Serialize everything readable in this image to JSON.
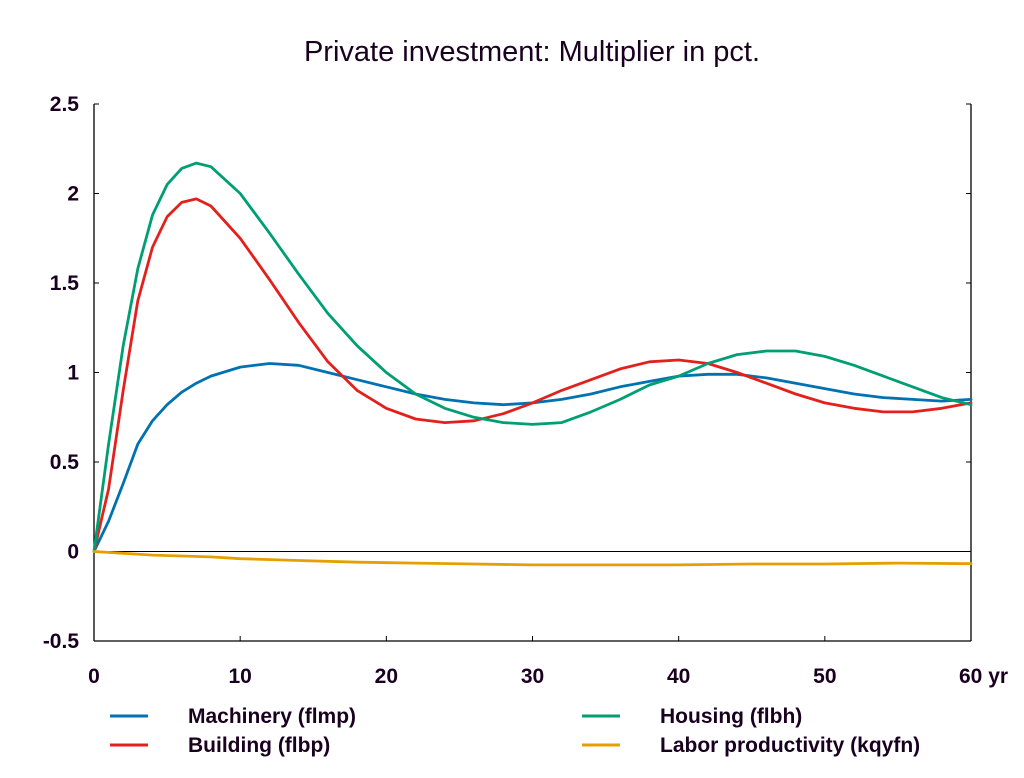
{
  "chart_data": {
    "type": "line",
    "title": "Private investment: Multiplier in pct.",
    "xlabel": "",
    "ylabel": "",
    "x_unit_suffix": "yr",
    "xlim": [
      0,
      60
    ],
    "ylim": [
      -0.5,
      2.5
    ],
    "xticks": [
      0,
      10,
      20,
      30,
      40,
      50,
      60
    ],
    "xtick_labels": [
      "0",
      "10",
      "20",
      "30",
      "40",
      "50",
      "60 yr"
    ],
    "yticks": [
      -0.5,
      0,
      0.5,
      1,
      1.5,
      2,
      2.5
    ],
    "ytick_labels": [
      "-0.5",
      "0",
      "0.5",
      "1",
      "1.5",
      "2",
      "2.5"
    ],
    "grid": false,
    "zero_line": true,
    "legend_position": "bottom",
    "series": [
      {
        "name": "Machinery (flmp)",
        "color": "#0072b2",
        "x": [
          0,
          1,
          2,
          3,
          4,
          5,
          6,
          7,
          8,
          10,
          12,
          14,
          16,
          18,
          20,
          22,
          24,
          26,
          28,
          30,
          32,
          34,
          36,
          38,
          40,
          42,
          44,
          46,
          48,
          50,
          52,
          54,
          56,
          58,
          60
        ],
        "y": [
          0,
          0.17,
          0.38,
          0.6,
          0.73,
          0.82,
          0.89,
          0.94,
          0.98,
          1.03,
          1.05,
          1.04,
          1.0,
          0.96,
          0.92,
          0.88,
          0.85,
          0.83,
          0.82,
          0.83,
          0.85,
          0.88,
          0.92,
          0.95,
          0.98,
          0.99,
          0.99,
          0.97,
          0.94,
          0.91,
          0.88,
          0.86,
          0.85,
          0.84,
          0.85
        ]
      },
      {
        "name": "Building (flbp)",
        "color": "#e3211c",
        "x": [
          0,
          1,
          2,
          3,
          4,
          5,
          6,
          7,
          8,
          10,
          12,
          14,
          16,
          18,
          20,
          22,
          24,
          26,
          28,
          30,
          32,
          34,
          36,
          38,
          40,
          42,
          44,
          46,
          48,
          50,
          52,
          54,
          56,
          58,
          60
        ],
        "y": [
          0,
          0.35,
          0.9,
          1.4,
          1.7,
          1.87,
          1.95,
          1.97,
          1.93,
          1.75,
          1.52,
          1.28,
          1.06,
          0.9,
          0.8,
          0.74,
          0.72,
          0.73,
          0.77,
          0.83,
          0.9,
          0.96,
          1.02,
          1.06,
          1.07,
          1.05,
          1.0,
          0.94,
          0.88,
          0.83,
          0.8,
          0.78,
          0.78,
          0.8,
          0.83
        ]
      },
      {
        "name": "Housing (flbh)",
        "color": "#009e73",
        "x": [
          0,
          1,
          2,
          3,
          4,
          5,
          6,
          7,
          8,
          10,
          12,
          14,
          16,
          18,
          20,
          22,
          24,
          26,
          28,
          30,
          32,
          34,
          36,
          38,
          40,
          42,
          44,
          46,
          48,
          50,
          52,
          54,
          56,
          58,
          60
        ],
        "y": [
          0,
          0.6,
          1.15,
          1.58,
          1.88,
          2.05,
          2.14,
          2.17,
          2.15,
          2.0,
          1.78,
          1.55,
          1.33,
          1.15,
          1.0,
          0.88,
          0.8,
          0.75,
          0.72,
          0.71,
          0.72,
          0.78,
          0.85,
          0.93,
          0.98,
          1.05,
          1.1,
          1.12,
          1.12,
          1.09,
          1.04,
          0.98,
          0.92,
          0.86,
          0.82
        ]
      },
      {
        "name": "Labor productivity (kqyfn)",
        "color": "#e69f00",
        "x": [
          0,
          2,
          4,
          6,
          8,
          10,
          14,
          18,
          22,
          26,
          30,
          35,
          40,
          45,
          50,
          55,
          60
        ],
        "y": [
          0,
          -0.01,
          -0.02,
          -0.025,
          -0.03,
          -0.04,
          -0.05,
          -0.06,
          -0.065,
          -0.07,
          -0.075,
          -0.075,
          -0.075,
          -0.07,
          -0.07,
          -0.065,
          -0.068
        ]
      }
    ]
  }
}
